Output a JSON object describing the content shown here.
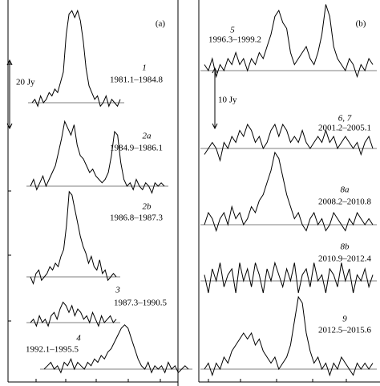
{
  "chart_data": [
    {
      "type": "line",
      "panel_label": "(a)",
      "scale_label": "20 Jy",
      "color": "#000000",
      "series": [
        {
          "name": "1",
          "period": "1981.1–1984.8",
          "values": [
            0,
            1,
            -1,
            2,
            0,
            1,
            3,
            2,
            4,
            3,
            6,
            9,
            20,
            26,
            27,
            25,
            27,
            24,
            18,
            10,
            5,
            3,
            1,
            2,
            -1,
            0,
            2,
            -1,
            1,
            0,
            -1,
            1
          ]
        },
        {
          "name": "2a",
          "period": "1984.9–1986.1",
          "values": [
            0,
            2,
            -1,
            1,
            3,
            0,
            2,
            4,
            6,
            10,
            14,
            19,
            17,
            15,
            18,
            12,
            9,
            8,
            6,
            4,
            5,
            3,
            2,
            1,
            2,
            4,
            9,
            16,
            15,
            7,
            2,
            0,
            1,
            -1,
            2,
            0,
            -1,
            1,
            0,
            -2,
            1,
            0,
            1,
            0
          ]
        },
        {
          "name": "2b",
          "period": "1986.8–1987.3",
          "values": [
            0,
            -2,
            1,
            2,
            -1,
            0,
            1,
            3,
            2,
            4,
            3,
            6,
            8,
            15,
            25,
            24,
            20,
            16,
            12,
            9,
            7,
            4,
            6,
            3,
            2,
            5,
            1,
            2,
            -1,
            0,
            1,
            0
          ]
        },
        {
          "name": "3",
          "period": "1987.3–1990.5",
          "values": [
            0,
            1,
            -1,
            2,
            0,
            1,
            -1,
            2,
            3,
            1,
            4,
            6,
            5,
            3,
            5,
            2,
            4,
            3,
            1,
            2,
            0,
            3,
            1,
            -1,
            2,
            0,
            1,
            2,
            0,
            1
          ]
        },
        {
          "name": "4",
          "period": "1992.1–1995.5",
          "values": [
            0,
            1,
            2,
            0,
            1,
            -1,
            2,
            1,
            3,
            0,
            2,
            1,
            0,
            2,
            1,
            3,
            2,
            4,
            3,
            5,
            6,
            8,
            10,
            12,
            13,
            12,
            9,
            6,
            3,
            1,
            0,
            2,
            -1,
            1,
            0,
            1,
            -1,
            2,
            0,
            1,
            -1,
            0,
            1,
            0
          ]
        }
      ]
    },
    {
      "type": "line",
      "panel_label": "(b)",
      "scale_label": "10 Jy",
      "color": "#000000",
      "series": [
        {
          "name": "5",
          "period": "1996.3–1999.2",
          "values": [
            1,
            0,
            2,
            -1,
            1,
            0,
            2,
            1,
            3,
            1,
            2,
            0,
            2,
            1,
            3,
            2,
            4,
            6,
            9,
            10,
            8,
            7,
            3,
            1,
            2,
            3,
            4,
            2,
            1,
            3,
            6,
            11,
            9,
            4,
            2,
            1,
            0,
            2,
            1,
            -1,
            1,
            0,
            2,
            1
          ]
        },
        {
          "name": "6, 7",
          "period": "2001.2–2005.1",
          "values": [
            -1,
            0,
            1,
            0,
            -2,
            1,
            0,
            2,
            1,
            3,
            2,
            4,
            3,
            1,
            2,
            0,
            1,
            3,
            4,
            2,
            4,
            3,
            1,
            2,
            1,
            3,
            1,
            0,
            1,
            2,
            1,
            3,
            1,
            2,
            0,
            1,
            2,
            1,
            0,
            1,
            -1,
            1,
            2,
            0
          ]
        },
        {
          "name": "8a",
          "period": "2008.2–2010.8",
          "values": [
            0,
            2,
            1,
            -1,
            1,
            2,
            0,
            3,
            1,
            2,
            0,
            1,
            3,
            2,
            4,
            5,
            7,
            9,
            12,
            11,
            8,
            5,
            3,
            1,
            2,
            0,
            -1,
            1,
            2,
            0,
            1,
            -1,
            0,
            2,
            1,
            0,
            -1,
            1,
            0,
            2,
            1,
            0,
            1,
            0
          ]
        },
        {
          "name": "8b",
          "period": "2010.9–2012.4",
          "values": [
            1,
            -2,
            2,
            0,
            3,
            -1,
            1,
            2,
            -2,
            3,
            0,
            2,
            -1,
            3,
            1,
            -2,
            2,
            0,
            3,
            1,
            -1,
            2,
            0,
            3,
            -2,
            1,
            2,
            -1,
            3,
            0,
            1,
            -2,
            2,
            1,
            -1,
            3,
            0,
            2,
            -2,
            1,
            0,
            2,
            -1,
            1
          ]
        },
        {
          "name": "9",
          "period": "2012.5–2015.6",
          "values": [
            0,
            1,
            -1,
            1,
            0,
            2,
            1,
            3,
            4,
            5,
            6,
            5,
            6,
            4,
            5,
            3,
            2,
            1,
            2,
            0,
            1,
            2,
            4,
            8,
            12,
            11,
            6,
            3,
            1,
            2,
            0,
            1,
            -1,
            1,
            0,
            2,
            1,
            0,
            -1,
            1,
            0,
            1,
            0,
            1
          ]
        }
      ]
    }
  ]
}
